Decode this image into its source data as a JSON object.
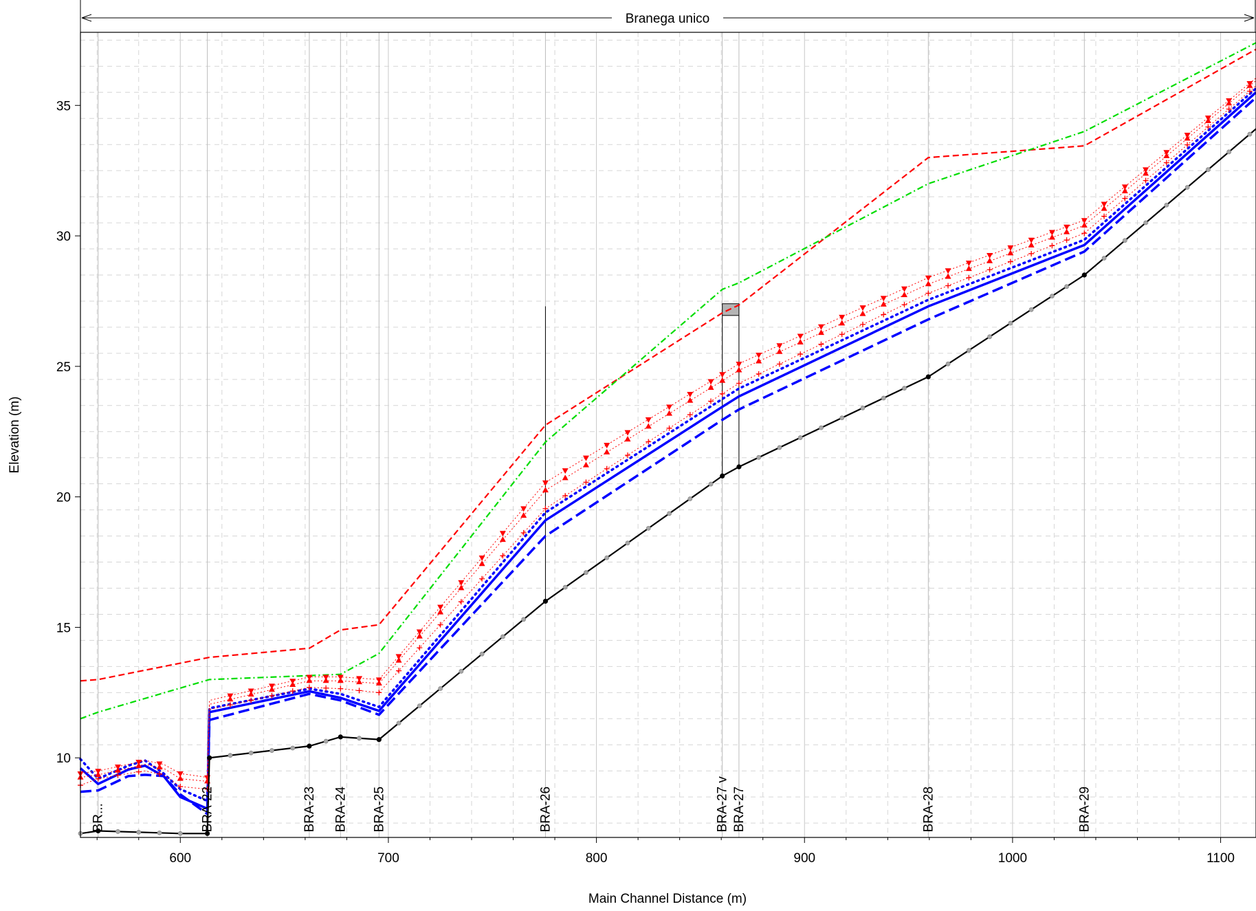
{
  "chart_data": {
    "type": "line",
    "xlabel": "Main Channel Distance (m)",
    "ylabel": "Elevation (m)",
    "xlim": [
      552,
      1117
    ],
    "ylim": [
      6.95,
      37.8
    ],
    "x_ticks": [
      600,
      700,
      800,
      900,
      1000,
      1100
    ],
    "y_ticks": [
      10,
      15,
      20,
      25,
      30,
      35
    ],
    "grid": true,
    "reach": {
      "label": "Branega unico",
      "x_start": 552,
      "x_end": 1117
    },
    "section_labels": [
      {
        "text": "BR...",
        "x": 560.5
      },
      {
        "text": "BRA-22",
        "x": 613
      },
      {
        "text": "BRA-23",
        "x": 662
      },
      {
        "text": "BRA-24",
        "x": 677
      },
      {
        "text": "BRA-25",
        "x": 695.5
      },
      {
        "text": "BRA-26",
        "x": 775.5
      },
      {
        "text": "BRA-27 v",
        "x": 860.5
      },
      {
        "text": "BRA-27",
        "x": 868.5
      },
      {
        "text": "BRA-28",
        "x": 959.5
      },
      {
        "text": "BRA-29",
        "x": 1034.5
      }
    ],
    "colors": {
      "ground": "#000000",
      "ws": "#0000ff",
      "energy": "#ff0000",
      "left_bank": "#ff0000",
      "right_bank": "#00dd00"
    },
    "ground": {
      "x": [
        552,
        560.5,
        600,
        613,
        614,
        662,
        677,
        695.5,
        775.5,
        860.5,
        868.5,
        959.5,
        1034.5,
        1117
      ],
      "y": [
        7.1,
        7.2,
        7.1,
        7.1,
        10.0,
        10.45,
        10.8,
        10.7,
        16.0,
        20.8,
        21.15,
        24.6,
        28.5,
        34.1
      ],
      "dots_x": [
        552,
        560.5,
        570,
        580,
        590,
        600,
        613,
        614,
        624,
        634,
        644,
        654,
        662,
        670,
        677,
        686,
        695.5,
        705,
        715,
        725,
        735,
        745,
        755,
        765,
        775.5,
        785,
        795,
        805,
        815,
        825,
        835,
        845,
        855,
        860.5,
        868.5,
        878,
        888,
        898,
        908,
        918,
        928,
        938,
        948,
        959.5,
        969,
        979,
        989,
        999,
        1009,
        1019,
        1026,
        1034.5,
        1044,
        1054,
        1064,
        1074,
        1084,
        1094,
        1104,
        1114
      ]
    },
    "series": [
      {
        "style": "ws_dash",
        "x": [
          552,
          560.5,
          575,
          583,
          592,
          600,
          613,
          614,
          662,
          677,
          695.5,
          775.5,
          860.5,
          868.5,
          959.5,
          1034.5,
          1117
        ],
        "y": [
          8.7,
          8.75,
          9.3,
          9.35,
          9.3,
          8.6,
          7.85,
          11.45,
          12.45,
          12.2,
          11.65,
          18.5,
          22.95,
          23.35,
          26.8,
          29.4,
          35.3
        ]
      },
      {
        "style": "ws_solid",
        "x": [
          552,
          560.5,
          575,
          583,
          592,
          600,
          613,
          614,
          662,
          677,
          695.5,
          775.5,
          860.5,
          868.5,
          959.5,
          1034.5,
          1117
        ],
        "y": [
          9.6,
          9.0,
          9.55,
          9.7,
          9.3,
          8.5,
          8.05,
          11.75,
          12.55,
          12.3,
          11.8,
          19.1,
          23.45,
          23.85,
          27.3,
          29.65,
          35.5
        ]
      },
      {
        "style": "ws_dot",
        "x": [
          552,
          560.5,
          575,
          583,
          592,
          600,
          613,
          614,
          662,
          677,
          695.5,
          775.5,
          860.5,
          868.5,
          959.5,
          1034.5,
          1117
        ],
        "y": [
          9.95,
          9.2,
          9.7,
          9.9,
          9.4,
          8.8,
          8.35,
          11.9,
          12.65,
          12.45,
          11.95,
          19.4,
          23.75,
          24.15,
          27.55,
          29.85,
          35.65
        ]
      },
      {
        "style": "eg",
        "marker": "plus",
        "x": [
          552,
          560.5,
          575,
          583,
          592,
          600,
          613,
          614,
          662,
          677,
          695.5,
          775.5,
          860.5,
          868.5,
          959.5,
          1034.5,
          1117
        ],
        "y": [
          8.95,
          9.2,
          9.4,
          9.5,
          9.35,
          8.9,
          8.8,
          11.85,
          12.7,
          12.65,
          12.5,
          19.55,
          23.95,
          24.35,
          27.8,
          30.1,
          35.75
        ]
      },
      {
        "style": "eg",
        "marker": "triangle-up",
        "x": [
          552,
          560.5,
          575,
          583,
          592,
          600,
          613,
          614,
          662,
          677,
          695.5,
          775.5,
          860.5,
          868.5,
          959.5,
          1034.5,
          1117
        ],
        "y": [
          9.25,
          9.35,
          9.6,
          9.75,
          9.6,
          9.2,
          9.1,
          12.05,
          12.95,
          12.95,
          12.85,
          20.25,
          24.45,
          24.85,
          28.15,
          30.4,
          35.95
        ]
      },
      {
        "style": "eg",
        "marker": "triangle-down",
        "x": [
          552,
          560.5,
          575,
          583,
          592,
          600,
          613,
          614,
          662,
          677,
          695.5,
          775.5,
          860.5,
          868.5,
          959.5,
          1034.5,
          1117
        ],
        "y": [
          9.4,
          9.5,
          9.75,
          9.9,
          9.75,
          9.4,
          9.25,
          12.2,
          13.1,
          13.1,
          13.0,
          20.55,
          24.7,
          25.1,
          28.4,
          30.6,
          36.05
        ]
      },
      {
        "style": "lob",
        "x": [
          552,
          560.5,
          614,
          662,
          677,
          695.5,
          775.5,
          860.5,
          868.5,
          959.5,
          1034.5,
          1117
        ],
        "y": [
          12.95,
          13.0,
          13.85,
          14.2,
          14.9,
          15.1,
          22.75,
          27.05,
          27.35,
          33.0,
          33.45,
          37.15
        ]
      },
      {
        "style": "rob",
        "x": [
          552,
          560.5,
          614,
          662,
          677,
          695.5,
          775.5,
          860.5,
          868.5,
          959.5,
          1034.5,
          1117
        ],
        "y": [
          11.5,
          11.75,
          13.0,
          13.15,
          13.2,
          14.0,
          22.1,
          27.95,
          28.2,
          32.0,
          34.0,
          37.4
        ]
      }
    ],
    "structure": {
      "x": [
        860.5,
        868.5
      ],
      "deck_low": 26.95,
      "deck_high": 27.4
    },
    "markers": {
      "line_x": 775.5,
      "line_top": 27.3,
      "line_bottom": 16.0
    }
  }
}
